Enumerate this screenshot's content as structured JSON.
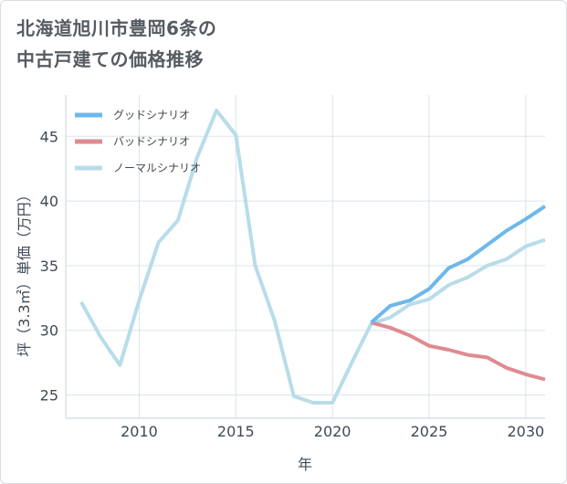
{
  "title_lines": [
    "北海道旭川市豊岡6条の",
    "中古戸建ての価格推移"
  ],
  "chart_data": {
    "type": "line",
    "title": "北海道旭川市豊岡6条の中古戸建ての価格推移",
    "xlabel": "年",
    "ylabel": "坪（3.3㎡）単価（万円）",
    "xlim": [
      2006.2,
      2031
    ],
    "ylim": [
      23.2,
      48.2
    ],
    "xticks": [
      2010,
      2015,
      2020,
      2025,
      2030
    ],
    "yticks": [
      25,
      30,
      35,
      40,
      45
    ],
    "grid": true,
    "legend_position": "top-left",
    "series": [
      {
        "name": "グッドシナリオ",
        "color": "#6db8ea",
        "x": [
          2022,
          2023,
          2024,
          2025,
          2026,
          2027,
          2028,
          2029,
          2030,
          2031
        ],
        "y": [
          30.6,
          31.9,
          32.3,
          33.2,
          34.8,
          35.5,
          36.6,
          37.7,
          38.6,
          39.6
        ]
      },
      {
        "name": "バッドシナリオ",
        "color": "#e08a91",
        "x": [
          2022,
          2023,
          2024,
          2025,
          2026,
          2027,
          2028,
          2029,
          2030,
          2031
        ],
        "y": [
          30.6,
          30.2,
          29.6,
          28.8,
          28.5,
          28.1,
          27.9,
          27.1,
          26.6,
          26.2
        ]
      },
      {
        "name": "ノーマルシナリオ",
        "color": "#b8dcea",
        "x": [
          2007,
          2008,
          2009,
          2010,
          2011,
          2012,
          2013,
          2014,
          2015,
          2016,
          2017,
          2018,
          2019,
          2020,
          2021,
          2022,
          2023,
          2024,
          2025,
          2026,
          2027,
          2028,
          2029,
          2030,
          2031
        ],
        "y": [
          32.2,
          29.5,
          27.3,
          32.3,
          36.8,
          38.5,
          43.4,
          47.0,
          45.1,
          35.0,
          30.8,
          24.9,
          24.4,
          24.4,
          27.5,
          30.5,
          31.0,
          32.0,
          32.4,
          33.5,
          34.1,
          35.0,
          35.5,
          36.5,
          37.0
        ]
      }
    ]
  }
}
